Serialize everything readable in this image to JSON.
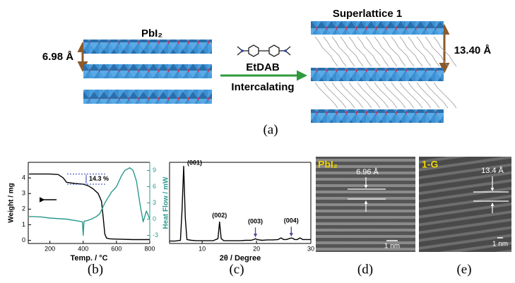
{
  "scheme": {
    "left_title": "PbI₂",
    "left_spacing": "6.98 Å",
    "reagent": "EtDAB",
    "process": "Intercalating",
    "right_title": "Superlattice 1",
    "right_spacing": "13.40 Å",
    "panel_label": "(a)"
  },
  "chart_data": [
    {
      "type": "line",
      "panel_label": "(b)",
      "x_label": "Temp. / °C",
      "y_label": "Weight / mg",
      "y2_label": "Heat Flow / mW",
      "annotation": "14.3 %",
      "xlim": [
        70,
        800
      ],
      "xticks": [
        200,
        400,
        600,
        800
      ],
      "ylim": [
        -0.2,
        5
      ],
      "yticks": [
        0,
        1,
        2,
        3,
        4
      ],
      "y2lim": [
        -4.5,
        10.5
      ],
      "y2ticks": [
        -3,
        0,
        3,
        6,
        9
      ],
      "series": [
        {
          "color": "#000000",
          "x": [
            75,
            150,
            200,
            250,
            280,
            300,
            350,
            400,
            430,
            460,
            490,
            510,
            520,
            530,
            540,
            560,
            600,
            700,
            800
          ],
          "values": [
            4.25,
            4.25,
            4.25,
            4.22,
            4.0,
            3.72,
            3.65,
            3.6,
            3.5,
            3.3,
            3.0,
            2.5,
            1.5,
            0.4,
            0.15,
            0.1,
            0.08,
            0.05,
            0.05
          ]
        },
        {
          "color": "#2a9a8e",
          "axis": "y2",
          "x": [
            75,
            150,
            200,
            300,
            380,
            395,
            400,
            405,
            420,
            450,
            480,
            500,
            530,
            570,
            600,
            630,
            650,
            680,
            700,
            720,
            740,
            760,
            780,
            800
          ],
          "values": [
            0.5,
            0.4,
            0.2,
            0,
            -0.4,
            -0.5,
            -3,
            -0.4,
            -0.3,
            0,
            0.5,
            1,
            3,
            5,
            6,
            8,
            9,
            9.5,
            9,
            7,
            3,
            -0.5,
            1.5,
            0
          ]
        }
      ]
    },
    {
      "type": "line",
      "panel_label": "(c)",
      "x_label": "2θ / Degree",
      "xlim": [
        4,
        30
      ],
      "xticks": [
        10,
        20,
        30
      ],
      "ylim": [
        -2,
        100
      ],
      "series": [
        {
          "color": "#000000",
          "x": [
            4,
            5,
            6,
            6.3,
            6.6,
            6.9,
            7.2,
            8,
            9,
            10,
            11,
            12,
            12.9,
            13.2,
            13.5,
            14,
            15,
            16,
            17,
            18,
            19,
            19.5,
            19.8,
            20.1,
            21,
            22,
            23,
            24,
            24.5,
            25,
            25.5,
            26,
            26.4,
            26.8,
            27,
            27.5,
            28,
            28.5,
            29,
            30
          ],
          "values": [
            1,
            1,
            2,
            40,
            95,
            30,
            3,
            2,
            1.5,
            1.5,
            1.5,
            1.5,
            4,
            25,
            4,
            1.5,
            1.5,
            1.5,
            1.5,
            2,
            2,
            3,
            4,
            3,
            2,
            2.5,
            2.5,
            3,
            5,
            3,
            3,
            4,
            5,
            4,
            3,
            3,
            5,
            3,
            3,
            3
          ]
        }
      ],
      "peaks": [
        {
          "label": "(001)",
          "x": 6.6
        },
        {
          "label": "(002)",
          "x": 13.2
        },
        {
          "label": "(003)",
          "x": 19.8,
          "arrow": true
        },
        {
          "label": "(004)",
          "x": 26.4,
          "arrow": true
        }
      ]
    }
  ],
  "images": [
    {
      "label": "PbI₂",
      "spacing": "6.96 Å",
      "scale": "1 nm",
      "panel_label": "(d)"
    },
    {
      "label": "1-G",
      "spacing": "13.4 Å",
      "scale": "1 nm",
      "panel_label": "(e)"
    }
  ]
}
